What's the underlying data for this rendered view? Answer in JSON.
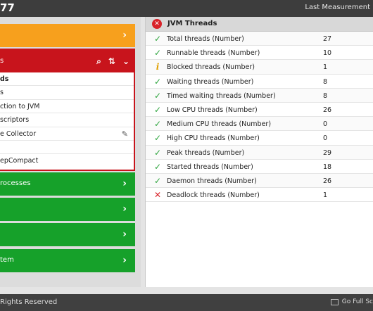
{
  "topbar": {
    "app_title": "77",
    "last_measurement": "Last Measurement"
  },
  "left": {
    "top_band": {
      "label": "",
      "color": "#f7a01d"
    },
    "red_group": {
      "label": "s",
      "color": "#c8141c",
      "items": [
        {
          "label": "ds",
          "selected": true
        },
        {
          "label": "s"
        },
        {
          "label": "ction to JVM"
        },
        {
          "label": "scriptors"
        },
        {
          "label": "e Collector",
          "icon": "edit-icon"
        },
        {
          "label": ""
        },
        {
          "label": "epCompact"
        }
      ]
    },
    "green_bands": [
      {
        "label": "rocesses"
      },
      {
        "label": ""
      },
      {
        "label": ""
      },
      {
        "label": "tem"
      }
    ],
    "green_color": "#16a12a"
  },
  "panel": {
    "title": "JVM Threads",
    "status_icon": "x-circle-icon",
    "rows": [
      {
        "name": "Total threads (Number)",
        "value": "27",
        "status": "ok"
      },
      {
        "name": "Runnable threads (Number)",
        "value": "10",
        "status": "ok"
      },
      {
        "name": "Blocked threads (Number)",
        "value": "1",
        "status": "warn"
      },
      {
        "name": "Waiting threads (Number)",
        "value": "8",
        "status": "ok"
      },
      {
        "name": "Timed waiting threads (Number)",
        "value": "8",
        "status": "ok"
      },
      {
        "name": "Low CPU threads (Number)",
        "value": "26",
        "status": "ok"
      },
      {
        "name": "Medium CPU threads (Number)",
        "value": "0",
        "status": "ok"
      },
      {
        "name": "High CPU threads (Number)",
        "value": "0",
        "status": "ok"
      },
      {
        "name": "Peak threads (Number)",
        "value": "29",
        "status": "ok"
      },
      {
        "name": "Started threads (Number)",
        "value": "18",
        "status": "ok"
      },
      {
        "name": "Daemon threads (Number)",
        "value": "26",
        "status": "ok"
      },
      {
        "name": "Deadlock threads (Number)",
        "value": "1",
        "status": "bad"
      }
    ]
  },
  "footer": {
    "rights": "Rights Reserved",
    "fullscreen": "Go Full Sc"
  }
}
